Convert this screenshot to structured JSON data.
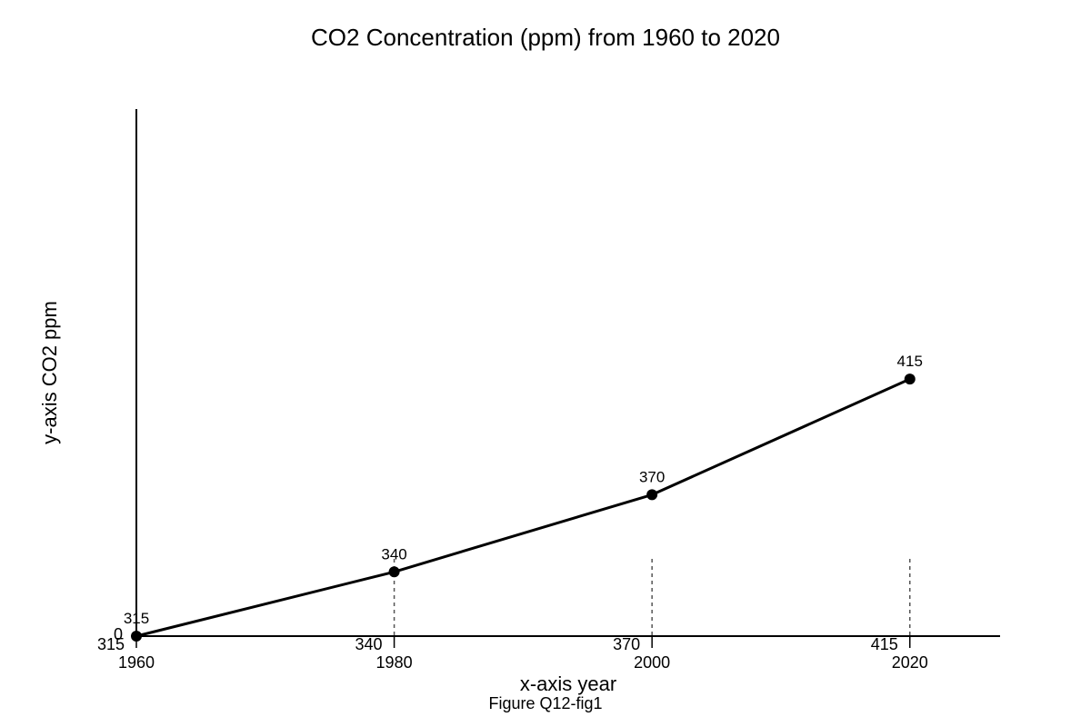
{
  "chart_data": {
    "type": "line",
    "title": "CO2 Concentration (ppm) from 1960 to 2020",
    "xlabel": "x-axis year",
    "ylabel": "y-axis CO2 ppm",
    "caption": "Figure Q12-fig1",
    "x": [
      1960,
      1980,
      2000,
      2020
    ],
    "values": [
      315,
      340,
      370,
      415
    ],
    "data_labels": [
      "315",
      "340",
      "370",
      "415"
    ],
    "x_tick_labels": [
      "1960",
      "1980",
      "2000",
      "2020"
    ],
    "x_secondary_tick_labels": [
      "315",
      "340",
      "370",
      "415"
    ],
    "y_tick_labels": [
      "0"
    ],
    "xlim": [
      1960,
      2027
    ],
    "ylim": [
      315,
      520
    ],
    "grid": false,
    "legend": "none",
    "line_color": "#000000",
    "marker_color": "#000000",
    "guide_line_color": "#555555"
  }
}
